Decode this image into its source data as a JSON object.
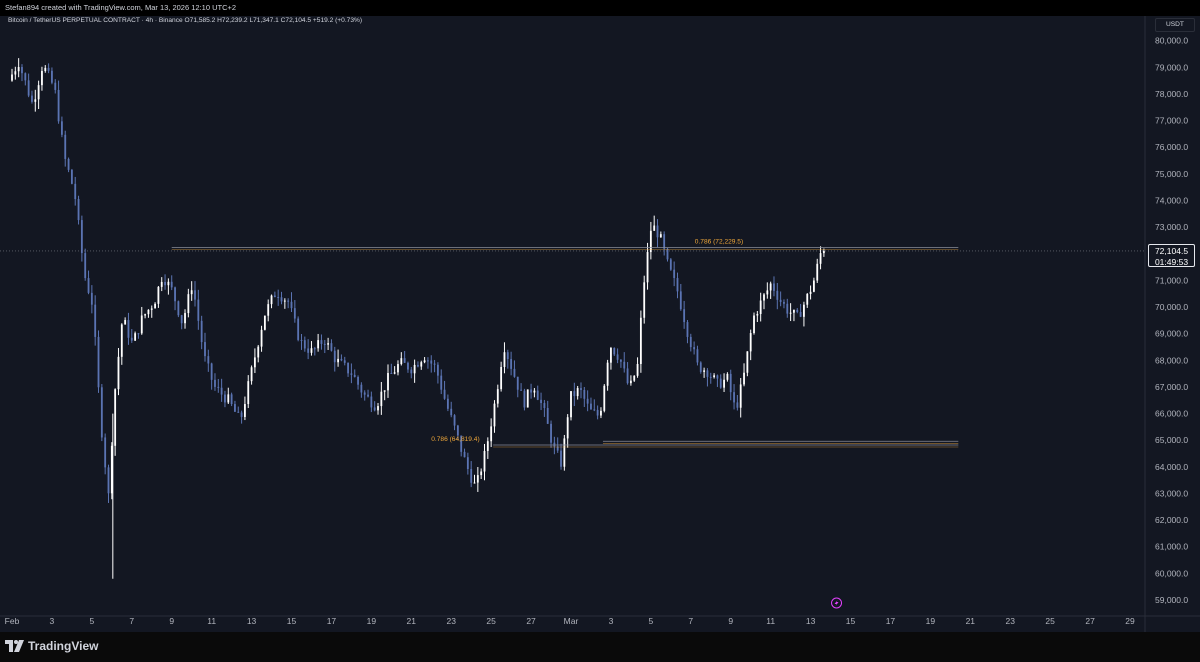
{
  "header": {
    "credit": "Stefan894 created with TradingView.com, Mar 13, 2026 12:10 UTC+2"
  },
  "legend": {
    "symbol": "Bitcoin / TetherUS PERPETUAL CONTRACT · 4h · Binance",
    "open": "O71,585.2",
    "high": "H72,239.2",
    "low": "L71,347.1",
    "close": "C72,104.5",
    "change": "+519.2 (+0.73%)"
  },
  "currency": "USDT",
  "last_price": {
    "price": "72,104.5",
    "countdown": "01:49:53"
  },
  "footer": {
    "brand": "TradingView",
    "logo_icon": "tradingview-logo-icon"
  },
  "colors": {
    "background": "#131722",
    "bull": "#ffffff",
    "bear": "#5b74b3",
    "fib": "#f0a83a",
    "level_line": "#8a8d99"
  },
  "chart_data": {
    "type": "candlestick",
    "title": "Bitcoin / TetherUS PERPETUAL CONTRACT · 4h · Binance",
    "ylim": [
      58400,
      80400
    ],
    "y_ticks": [
      "80,000.0",
      "79,000.0",
      "78,000.0",
      "77,000.0",
      "76,000.0",
      "75,000.0",
      "74,000.0",
      "73,000.0",
      "72,000.0",
      "71,000.0",
      "70,000.0",
      "69,000.0",
      "68,000.0",
      "67,000.0",
      "66,000.0",
      "65,000.0",
      "64,000.0",
      "63,000.0",
      "62,000.0",
      "61,000.0",
      "60,000.0",
      "59,000.0"
    ],
    "x_ticks": [
      {
        "day": 1,
        "label": "Feb"
      },
      {
        "day": 3,
        "label": "3"
      },
      {
        "day": 5,
        "label": "5"
      },
      {
        "day": 7,
        "label": "7"
      },
      {
        "day": 9,
        "label": "9"
      },
      {
        "day": 11,
        "label": "11"
      },
      {
        "day": 13,
        "label": "13"
      },
      {
        "day": 15,
        "label": "15"
      },
      {
        "day": 17,
        "label": "17"
      },
      {
        "day": 19,
        "label": "19"
      },
      {
        "day": 21,
        "label": "21"
      },
      {
        "day": 23,
        "label": "23"
      },
      {
        "day": 25,
        "label": "25"
      },
      {
        "day": 27,
        "label": "27"
      },
      {
        "day": 29,
        "label": "Mar"
      },
      {
        "day": 31,
        "label": "3"
      },
      {
        "day": 33,
        "label": "5"
      },
      {
        "day": 35,
        "label": "7"
      },
      {
        "day": 37,
        "label": "9"
      },
      {
        "day": 39,
        "label": "11"
      },
      {
        "day": 41,
        "label": "13"
      },
      {
        "day": 43,
        "label": "15"
      },
      {
        "day": 45,
        "label": "17"
      },
      {
        "day": 47,
        "label": "19"
      },
      {
        "day": 49,
        "label": "21"
      },
      {
        "day": 51,
        "label": "23"
      },
      {
        "day": 53,
        "label": "25"
      },
      {
        "day": 55,
        "label": "27"
      },
      {
        "day": 57,
        "label": "29"
      }
    ],
    "x_range_days": [
      1,
      57.4
    ],
    "price_path": [
      [
        1.0,
        78500
      ],
      [
        1.5,
        79200
      ],
      [
        2.2,
        77600
      ],
      [
        2.7,
        79100
      ],
      [
        3.3,
        78200
      ],
      [
        3.8,
        75600
      ],
      [
        4.3,
        74300
      ],
      [
        4.8,
        71200
      ],
      [
        5.2,
        70100
      ],
      [
        5.6,
        65800
      ],
      [
        6.0,
        62900
      ],
      [
        6.3,
        66700
      ],
      [
        6.7,
        69600
      ],
      [
        7.2,
        68600
      ],
      [
        7.7,
        69600
      ],
      [
        8.3,
        70200
      ],
      [
        8.7,
        71200
      ],
      [
        9.2,
        70600
      ],
      [
        9.7,
        69400
      ],
      [
        10.2,
        70900
      ],
      [
        10.8,
        68100
      ],
      [
        11.3,
        67000
      ],
      [
        12.0,
        66500
      ],
      [
        12.6,
        65700
      ],
      [
        13.2,
        67700
      ],
      [
        13.8,
        69700
      ],
      [
        14.4,
        70600
      ],
      [
        15.0,
        70200
      ],
      [
        15.6,
        68700
      ],
      [
        16.2,
        68300
      ],
      [
        16.8,
        68800
      ],
      [
        17.4,
        68000
      ],
      [
        18.2,
        67500
      ],
      [
        18.8,
        66700
      ],
      [
        19.4,
        66300
      ],
      [
        20.0,
        67300
      ],
      [
        20.6,
        67900
      ],
      [
        21.2,
        67700
      ],
      [
        21.8,
        68200
      ],
      [
        22.4,
        67700
      ],
      [
        22.9,
        66400
      ],
      [
        23.4,
        65300
      ],
      [
        23.9,
        64100
      ],
      [
        24.4,
        63200
      ],
      [
        24.9,
        64600
      ],
      [
        25.4,
        66600
      ],
      [
        25.8,
        68600
      ],
      [
        26.3,
        67500
      ],
      [
        26.8,
        66400
      ],
      [
        27.3,
        67100
      ],
      [
        27.8,
        66100
      ],
      [
        28.3,
        64700
      ],
      [
        28.7,
        64100
      ],
      [
        29.1,
        66600
      ],
      [
        29.6,
        66900
      ],
      [
        30.1,
        66100
      ],
      [
        30.6,
        65900
      ],
      [
        31.1,
        68600
      ],
      [
        31.6,
        68100
      ],
      [
        32.1,
        66900
      ],
      [
        32.5,
        67800
      ],
      [
        32.8,
        70800
      ],
      [
        33.2,
        73100
      ],
      [
        33.6,
        72700
      ],
      [
        34.0,
        71600
      ],
      [
        34.5,
        70600
      ],
      [
        35.0,
        69100
      ],
      [
        35.5,
        67800
      ],
      [
        36.0,
        67600
      ],
      [
        36.5,
        67100
      ],
      [
        37.0,
        67300
      ],
      [
        37.4,
        66100
      ],
      [
        37.8,
        67300
      ],
      [
        38.3,
        69600
      ],
      [
        38.7,
        70200
      ],
      [
        39.2,
        70900
      ],
      [
        39.6,
        70300
      ],
      [
        40.0,
        69900
      ],
      [
        40.5,
        69600
      ],
      [
        40.9,
        70200
      ],
      [
        41.3,
        70900
      ],
      [
        41.7,
        72104.5
      ]
    ],
    "levels": [
      {
        "label": "0.786 (72,229.5)",
        "price": 72229.5,
        "from_day": 9.0,
        "to_day": 48.4
      },
      {
        "label": "0.786 (64,819.4)",
        "price": 64819.4,
        "from_day": 25.1,
        "to_day": 48.4
      },
      {
        "label": "",
        "price": 64960,
        "from_day": 30.6,
        "to_day": 48.4
      }
    ],
    "last_price": 72104.5
  }
}
